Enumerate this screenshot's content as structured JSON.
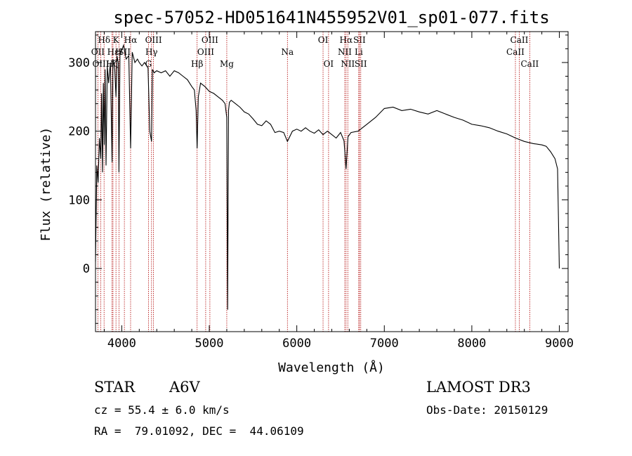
{
  "chart_data": {
    "type": "line",
    "title": "spec-57052-HD051641N455952V01_sp01-077.fits",
    "xlabel": "Wavelength (Å)",
    "ylabel": "Flux (relative)",
    "xlim": [
      3700,
      9100
    ],
    "ylim": [
      -92,
      345
    ],
    "x_ticks": [
      4000,
      5000,
      6000,
      7000,
      8000,
      9000
    ],
    "y_ticks": [
      0,
      100,
      200,
      300
    ],
    "x_minor_step": 200,
    "y_minor_step": 20,
    "spectrum": {
      "x": [
        3700,
        3715,
        3730,
        3745,
        3760,
        3770,
        3780,
        3790,
        3800,
        3810,
        3820,
        3835,
        3850,
        3870,
        3889,
        3900,
        3920,
        3934,
        3945,
        3960,
        3968,
        3980,
        4000,
        4020,
        4050,
        4080,
        4101,
        4120,
        4150,
        4180,
        4200,
        4230,
        4260,
        4300,
        4320,
        4340,
        4350,
        4370,
        4400,
        4450,
        4500,
        4550,
        4600,
        4650,
        4700,
        4750,
        4800,
        4830,
        4850,
        4861,
        4875,
        4900,
        4950,
        5000,
        5050,
        5100,
        5150,
        5180,
        5200,
        5210,
        5220,
        5230,
        5250,
        5300,
        5350,
        5400,
        5450,
        5500,
        5550,
        5600,
        5650,
        5700,
        5750,
        5800,
        5850,
        5893,
        5950,
        6000,
        6050,
        6100,
        6150,
        6200,
        6250,
        6300,
        6350,
        6400,
        6450,
        6500,
        6540,
        6563,
        6585,
        6620,
        6700,
        6800,
        6900,
        7000,
        7100,
        7200,
        7300,
        7400,
        7500,
        7600,
        7700,
        7800,
        7900,
        8000,
        8100,
        8200,
        8300,
        8400,
        8500,
        8600,
        8700,
        8800,
        8850,
        8900,
        8950,
        8980,
        9000
      ],
      "y": [
        10,
        150,
        125,
        190,
        160,
        255,
        140,
        270,
        180,
        290,
        150,
        295,
        270,
        300,
        155,
        305,
        290,
        250,
        310,
        300,
        140,
        315,
        318,
        325,
        305,
        310,
        175,
        315,
        300,
        305,
        300,
        295,
        300,
        292,
        200,
        185,
        290,
        285,
        288,
        285,
        288,
        280,
        288,
        285,
        280,
        275,
        265,
        260,
        230,
        175,
        250,
        270,
        265,
        258,
        255,
        250,
        245,
        240,
        220,
        -60,
        230,
        242,
        245,
        240,
        235,
        228,
        225,
        218,
        210,
        208,
        215,
        210,
        198,
        200,
        198,
        185,
        200,
        203,
        200,
        205,
        200,
        197,
        202,
        195,
        200,
        195,
        190,
        198,
        186,
        145,
        192,
        198,
        200,
        210,
        220,
        233,
        235,
        230,
        232,
        228,
        225,
        230,
        225,
        220,
        216,
        210,
        208,
        205,
        200,
        196,
        190,
        185,
        182,
        180,
        178,
        170,
        160,
        145,
        0
      ]
    },
    "spectral_lines": [
      {
        "label": "Hδ",
        "x": 3798,
        "row": 1
      },
      {
        "label": "OII",
        "x": 3727,
        "row": 2
      },
      {
        "label": "OIII",
        "x": 3760,
        "row": 3
      },
      {
        "label": "K",
        "x": 3934,
        "row": 1
      },
      {
        "label": "Hε",
        "x": 3900,
        "row": 2
      },
      {
        "label": "H",
        "x": 3968,
        "row": 2
      },
      {
        "label": "SII",
        "x": 4030,
        "row": 2
      },
      {
        "label": "Hζ",
        "x": 3889,
        "row": 3
      },
      {
        "label": "Hα",
        "x": 4101,
        "row": 1
      },
      {
        "label": "OIII",
        "x": 4363,
        "row": 1
      },
      {
        "label": "Hγ",
        "x": 4340,
        "row": 2
      },
      {
        "label": "G",
        "x": 4305,
        "row": 3
      },
      {
        "label": "Hβ",
        "x": 4861,
        "row": 3
      },
      {
        "label": "OIII",
        "x": 5007,
        "row": 1
      },
      {
        "label": "OIII",
        "x": 4959,
        "row": 2
      },
      {
        "label": "Mg",
        "x": 5200,
        "row": 3
      },
      {
        "label": "Na",
        "x": 5893,
        "row": 2
      },
      {
        "label": "OI",
        "x": 6300,
        "row": 1
      },
      {
        "label": "OI",
        "x": 6363,
        "row": 3
      },
      {
        "label": "Hα",
        "x": 6563,
        "row": 1
      },
      {
        "label": "SII",
        "x": 6716,
        "row": 1
      },
      {
        "label": "NII",
        "x": 6548,
        "row": 2
      },
      {
        "label": "Li",
        "x": 6708,
        "row": 2
      },
      {
        "label": "NII",
        "x": 6583,
        "row": 3
      },
      {
        "label": "SII",
        "x": 6731,
        "row": 3
      },
      {
        "label": "CaII",
        "x": 8542,
        "row": 1
      },
      {
        "label": "CaII",
        "x": 8498,
        "row": 2
      },
      {
        "label": "CaII",
        "x": 8662,
        "row": 3
      }
    ]
  },
  "info": {
    "object_class": "STAR",
    "subclass": "A6V",
    "survey": "LAMOST DR3",
    "cz": "cz = 55.4 ± 6.0 km/s",
    "obs_date": "Obs-Date: 20150129",
    "coords": "RA =  79.01092, DEC =  44.06109"
  }
}
